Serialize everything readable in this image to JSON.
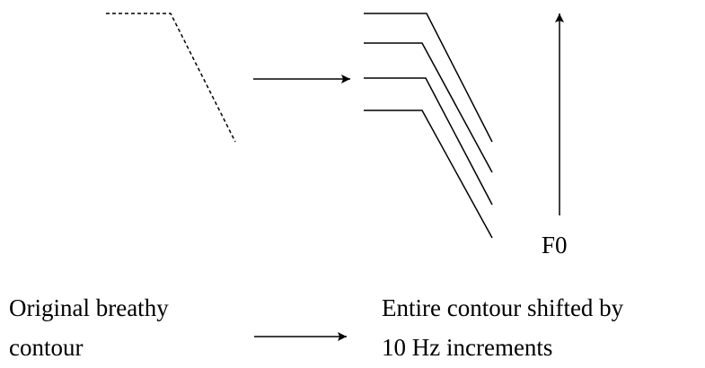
{
  "axis_label": "F0",
  "left_caption": [
    "Original breathy",
    "contour"
  ],
  "right_caption": [
    "Entire contour shifted by",
    "10 Hz increments"
  ]
}
